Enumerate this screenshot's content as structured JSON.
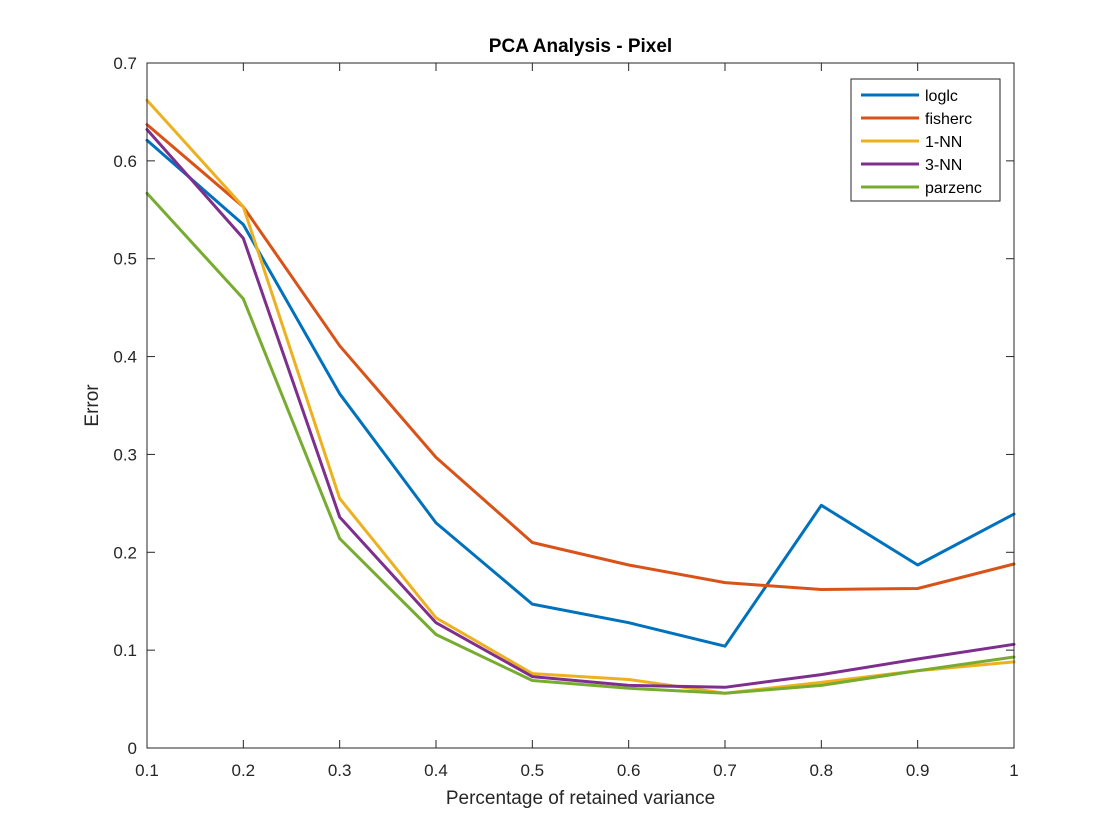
{
  "chart_data": {
    "type": "line",
    "title": "PCA Analysis - Pixel",
    "xlabel": "Percentage of retained variance",
    "ylabel": "Error",
    "xlim": [
      0.1,
      1
    ],
    "ylim": [
      0,
      0.7
    ],
    "x": [
      0.1,
      0.2,
      0.3,
      0.4,
      0.5,
      0.6,
      0.7,
      0.8,
      0.9,
      1
    ],
    "xticks": [
      "0.1",
      "0.2",
      "0.3",
      "0.4",
      "0.5",
      "0.6",
      "0.7",
      "0.8",
      "0.9",
      "1"
    ],
    "yticks": [
      "0",
      "0.1",
      "0.2",
      "0.3",
      "0.4",
      "0.5",
      "0.6",
      "0.7"
    ],
    "grid": false,
    "legend_position": "top-right",
    "series": [
      {
        "name": "loglc",
        "color": "#0072BD",
        "values": [
          0.621,
          0.535,
          0.362,
          0.23,
          0.147,
          0.128,
          0.104,
          0.248,
          0.187,
          0.239
        ]
      },
      {
        "name": "fisherc",
        "color": "#D95319",
        "values": [
          0.637,
          0.553,
          0.411,
          0.297,
          0.21,
          0.187,
          0.169,
          0.162,
          0.163,
          0.188
        ]
      },
      {
        "name": "1-NN",
        "color": "#EDB120",
        "values": [
          0.662,
          0.553,
          0.255,
          0.133,
          0.076,
          0.07,
          0.056,
          0.067,
          0.079,
          0.088
        ]
      },
      {
        "name": "3-NN",
        "color": "#7E2F8E",
        "values": [
          0.632,
          0.521,
          0.236,
          0.128,
          0.073,
          0.064,
          0.062,
          0.075,
          0.091,
          0.106
        ]
      },
      {
        "name": "parzenc",
        "color": "#77AC30",
        "values": [
          0.567,
          0.459,
          0.214,
          0.116,
          0.069,
          0.061,
          0.056,
          0.064,
          0.079,
          0.093
        ]
      }
    ]
  }
}
